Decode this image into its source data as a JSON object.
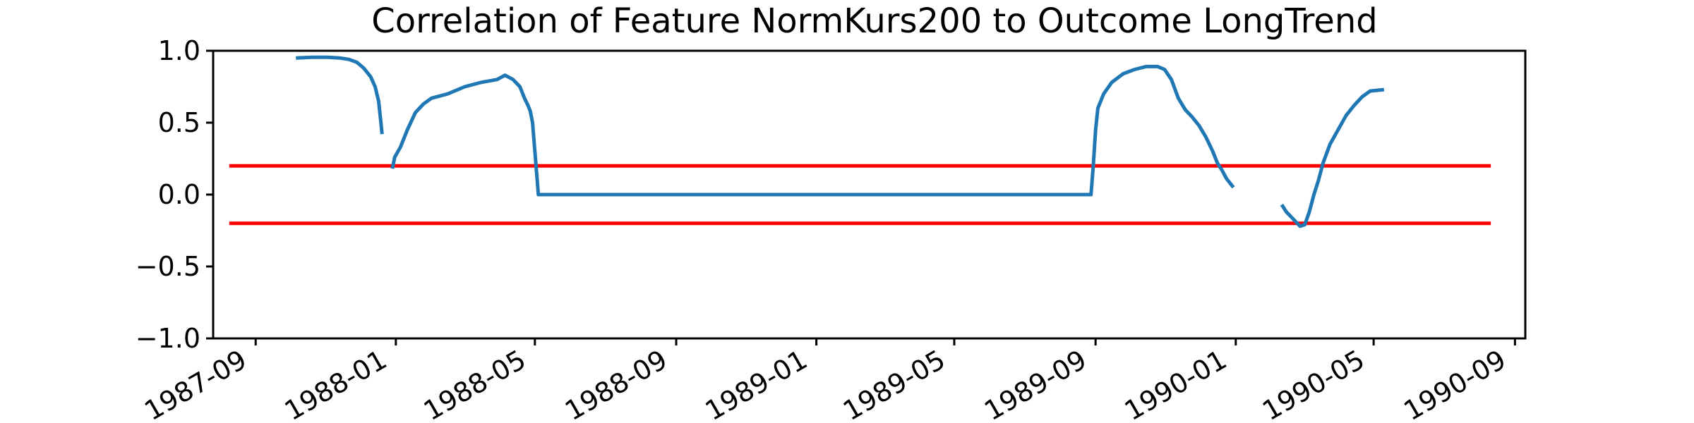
{
  "chart_data": {
    "type": "line",
    "title": "Correlation of Feature NormKurs200 to Outcome LongTrend",
    "xlabel": "",
    "ylabel": "",
    "x_axis": "date",
    "xlim": [
      "1987-07-26",
      "1990-09-10"
    ],
    "ylim": [
      -1.0,
      1.0
    ],
    "grid": false,
    "legend": "none",
    "yticks": [
      1.0,
      0.5,
      0.0,
      -0.5,
      -1.0
    ],
    "ytick_labels": [
      "1.0",
      "0.5",
      "0.0",
      "−0.5",
      "−1.0"
    ],
    "xticks": [
      "1987-09-01",
      "1988-01-01",
      "1988-05-01",
      "1988-09-01",
      "1989-01-01",
      "1989-05-01",
      "1989-09-01",
      "1990-01-01",
      "1990-05-01",
      "1990-09-01"
    ],
    "xtick_labels": [
      "1987-09",
      "1988-01",
      "1988-05",
      "1988-09",
      "1989-01",
      "1989-05",
      "1989-09",
      "1990-01",
      "1990-05",
      "1990-09"
    ],
    "colors": {
      "series": "#1f77b4",
      "threshold": "#ff0000"
    },
    "series": [
      {
        "segments": [
          [
            [
              "1987-10-06",
              0.95
            ],
            [
              "1987-10-20",
              0.955
            ],
            [
              "1987-11-03",
              0.955
            ],
            [
              "1987-11-13",
              0.95
            ],
            [
              "1987-11-21",
              0.94
            ],
            [
              "1987-11-28",
              0.92
            ],
            [
              "1987-12-04",
              0.88
            ],
            [
              "1987-12-10",
              0.82
            ],
            [
              "1987-12-14",
              0.75
            ],
            [
              "1987-12-17",
              0.65
            ],
            [
              "1987-12-19",
              0.5
            ],
            [
              "1987-12-20",
              0.42
            ]
          ],
          [
            [
              "1987-12-29",
              0.18
            ],
            [
              "1987-12-31",
              0.26
            ],
            [
              "1988-01-05",
              0.33
            ],
            [
              "1988-01-11",
              0.45
            ],
            [
              "1988-01-18",
              0.57
            ],
            [
              "1988-01-25",
              0.63
            ],
            [
              "1988-02-01",
              0.67
            ],
            [
              "1988-02-15",
              0.7
            ],
            [
              "1988-03-01",
              0.75
            ],
            [
              "1988-03-15",
              0.78
            ],
            [
              "1988-03-29",
              0.8
            ],
            [
              "1988-04-05",
              0.83
            ],
            [
              "1988-04-12",
              0.8
            ],
            [
              "1988-04-18",
              0.75
            ],
            [
              "1988-04-22",
              0.67
            ],
            [
              "1988-04-25",
              0.62
            ],
            [
              "1988-04-27",
              0.58
            ],
            [
              "1988-04-29",
              0.5
            ],
            [
              "1988-05-01",
              0.3
            ],
            [
              "1988-05-03",
              0.1
            ],
            [
              "1988-05-04",
              0.0
            ],
            [
              "1988-06-01",
              0.0
            ],
            [
              "1988-09-01",
              0.0
            ],
            [
              "1988-12-01",
              0.0
            ],
            [
              "1989-03-01",
              0.0
            ],
            [
              "1989-06-01",
              0.0
            ],
            [
              "1989-08-28",
              0.0
            ],
            [
              "1989-08-30",
              0.2
            ],
            [
              "1989-09-01",
              0.45
            ],
            [
              "1989-09-03",
              0.6
            ],
            [
              "1989-09-08",
              0.7
            ],
            [
              "1989-09-15",
              0.78
            ],
            [
              "1989-09-25",
              0.84
            ],
            [
              "1989-10-05",
              0.87
            ],
            [
              "1989-10-15",
              0.89
            ],
            [
              "1989-10-25",
              0.89
            ],
            [
              "1989-10-31",
              0.87
            ],
            [
              "1989-11-06",
              0.8
            ],
            [
              "1989-11-12",
              0.67
            ],
            [
              "1989-11-18",
              0.59
            ],
            [
              "1989-11-24",
              0.54
            ],
            [
              "1989-11-30",
              0.48
            ],
            [
              "1989-12-06",
              0.4
            ],
            [
              "1989-12-12",
              0.3
            ],
            [
              "1989-12-16",
              0.22
            ],
            [
              "1989-12-20",
              0.17
            ],
            [
              "1989-12-24",
              0.11
            ],
            [
              "1989-12-30",
              0.05
            ]
          ],
          [
            [
              "1990-02-10",
              -0.07
            ],
            [
              "1990-02-14",
              -0.12
            ],
            [
              "1990-02-20",
              -0.17
            ],
            [
              "1990-02-26",
              -0.22
            ],
            [
              "1990-03-02",
              -0.21
            ],
            [
              "1990-03-06",
              -0.12
            ],
            [
              "1990-03-10",
              0.0
            ],
            [
              "1990-03-14",
              0.1
            ],
            [
              "1990-03-18",
              0.22
            ],
            [
              "1990-03-24",
              0.35
            ],
            [
              "1990-03-31",
              0.45
            ],
            [
              "1990-04-07",
              0.55
            ],
            [
              "1990-04-14",
              0.62
            ],
            [
              "1990-04-21",
              0.68
            ],
            [
              "1990-04-28",
              0.72
            ],
            [
              "1990-05-10",
              0.73
            ]
          ]
        ]
      }
    ],
    "hlines": [
      {
        "y": 0.2,
        "x_from": "1987-08-09",
        "x_to": "1990-08-11"
      },
      {
        "y": -0.2,
        "x_from": "1987-08-09",
        "x_to": "1990-08-11"
      }
    ]
  }
}
